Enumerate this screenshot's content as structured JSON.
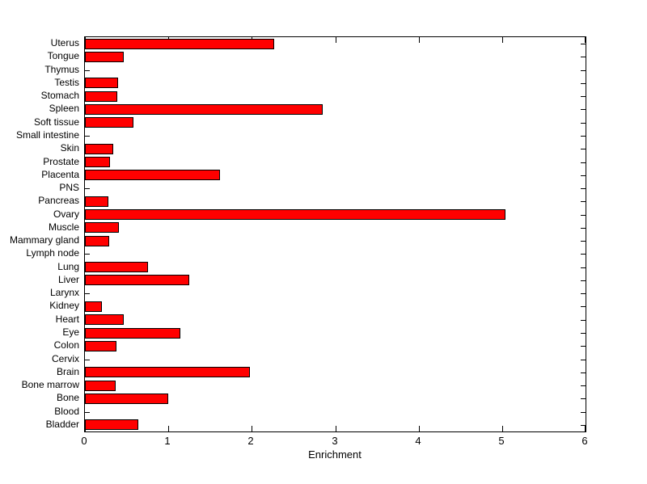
{
  "figure": {
    "background_color": "#ffffff",
    "text_color": "#000000"
  },
  "chart_data": {
    "type": "bar",
    "orientation": "horizontal",
    "xlabel": "Enrichment",
    "ylabel": "",
    "xlim": [
      0,
      6
    ],
    "xticks": [
      0,
      1,
      2,
      3,
      4,
      5,
      6
    ],
    "grid": false,
    "legend": false,
    "bar_color": "#ff0000",
    "bar_edge_color": "#000000",
    "axis_color": "#000000",
    "categories": [
      "Uterus",
      "Tongue",
      "Thymus",
      "Testis",
      "Stomach",
      "Spleen",
      "Soft tissue",
      "Small intestine",
      "Skin",
      "Prostate",
      "Placenta",
      "PNS",
      "Pancreas",
      "Ovary",
      "Muscle",
      "Mammary gland",
      "Lymph node",
      "Lung",
      "Liver",
      "Larynx",
      "Kidney",
      "Heart",
      "Eye",
      "Colon",
      "Cervix",
      "Brain",
      "Bone marrow",
      "Bone",
      "Blood",
      "Bladder"
    ],
    "values": [
      2.27,
      0.47,
      0,
      0.4,
      0.39,
      2.85,
      0.58,
      0,
      0.34,
      0.3,
      1.62,
      0,
      0.28,
      5.04,
      0.41,
      0.29,
      0,
      0.76,
      1.25,
      0,
      0.2,
      0.47,
      1.14,
      0.38,
      0,
      1.98,
      0.37,
      1.0,
      0,
      0.64
    ]
  }
}
